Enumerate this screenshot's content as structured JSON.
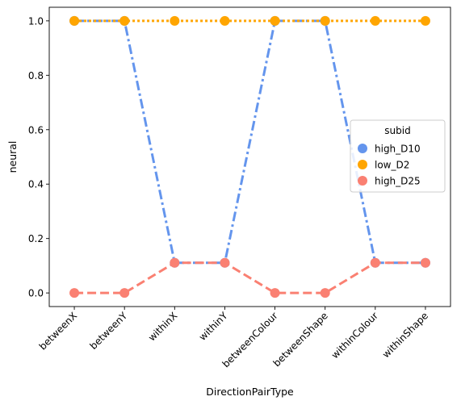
{
  "chart_data": {
    "type": "line",
    "xlabel": "DirectionPairType",
    "ylabel": "neural",
    "ylim": [
      -0.05,
      1.05
    ],
    "yticks": [
      0.0,
      0.2,
      0.4,
      0.6,
      0.8,
      1.0
    ],
    "ytick_labels": [
      "0.0",
      "0.2",
      "0.4",
      "0.6",
      "0.8",
      "1.0"
    ],
    "categories": [
      "betweenX",
      "betweenY",
      "withinX",
      "withinY",
      "betweenColour",
      "betweenShape",
      "withinColour",
      "withinShape"
    ],
    "legend": {
      "title": "subid",
      "placement": "center-right"
    },
    "series": [
      {
        "name": "high_D10",
        "color": "#6495ed",
        "dash": "dashdot",
        "values": [
          1.0,
          1.0,
          0.111,
          0.111,
          1.0,
          1.0,
          0.111,
          0.111
        ]
      },
      {
        "name": "low_D2",
        "color": "#ffa500",
        "dash": "dotted",
        "values": [
          1.0,
          1.0,
          1.0,
          1.0,
          1.0,
          1.0,
          1.0,
          1.0
        ]
      },
      {
        "name": "high_D25",
        "color": "#fa8072",
        "dash": "dashed",
        "values": [
          0.0,
          0.0,
          0.111,
          0.111,
          0.0,
          0.0,
          0.111,
          0.111
        ]
      }
    ]
  }
}
